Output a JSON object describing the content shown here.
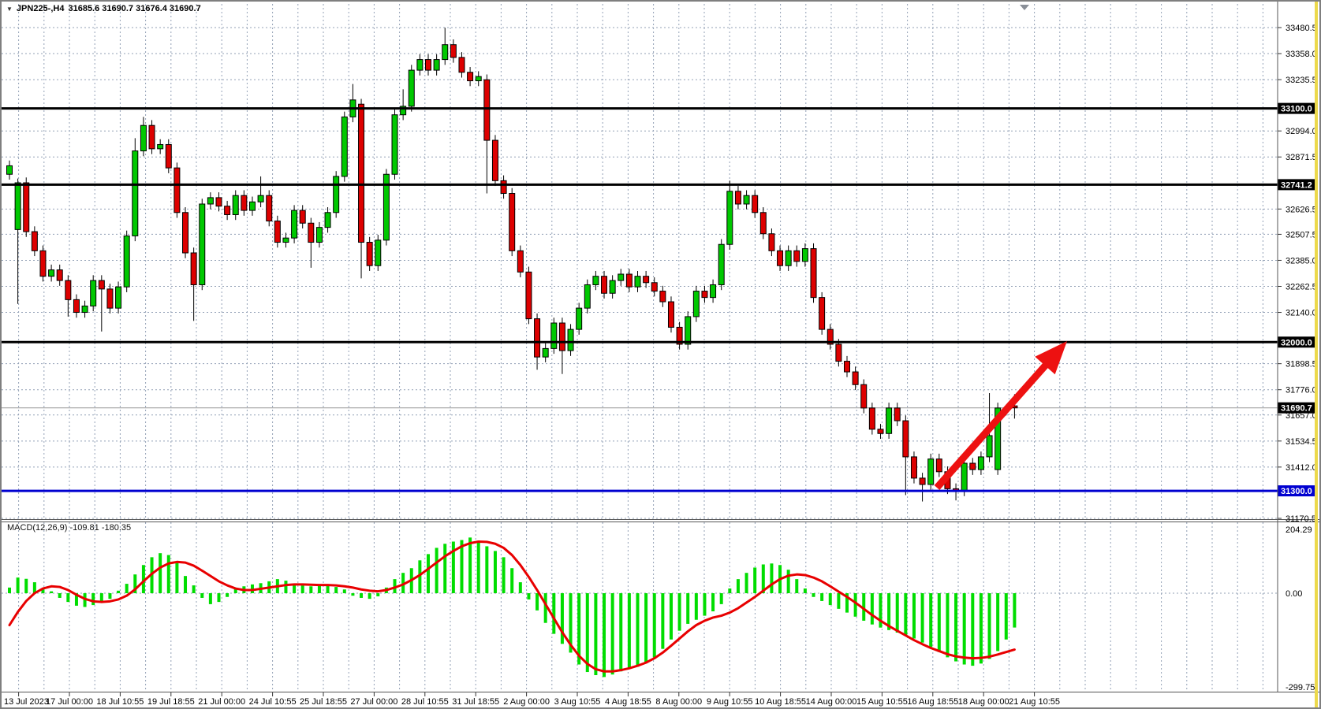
{
  "header": {
    "symbol_period": "JPN225-,H4",
    "ohlc": "31685.6 31690.7 31676.4 31690.7"
  },
  "macd": {
    "label": "MACD(12,26,9) -109.81 -180.35",
    "scale_top": "204.29",
    "scale_zero": "0.00",
    "scale_bottom": "-299.75"
  },
  "colors": {
    "bull_candle": "#00c800",
    "bear_candle": "#dd0000",
    "wick": "#000000",
    "grid": "#93a1b6",
    "level_black": "#000000",
    "level_blue": "#0000d0",
    "current_price_line": "#999999",
    "macd_histogram": "#00dd00",
    "macd_signal": "#e80000",
    "arrow": "#ed1111",
    "tag_black_bg": "#000000",
    "tag_blue_bg": "#0000d0",
    "tag_text": "#ffffff"
  },
  "price_axis": {
    "labels": [
      {
        "text": "33480.5",
        "price": 33480.5,
        "style": "plain"
      },
      {
        "text": "33358.0",
        "price": 33358.0,
        "style": "plain"
      },
      {
        "text": "33235.5",
        "price": 33235.5,
        "style": "plain"
      },
      {
        "text": "33100.0",
        "price": 33100.0,
        "style": "black-tag"
      },
      {
        "text": "32994.0",
        "price": 32994.0,
        "style": "plain"
      },
      {
        "text": "32871.5",
        "price": 32871.5,
        "style": "plain"
      },
      {
        "text": "32741.2",
        "price": 32741.2,
        "style": "black-tag"
      },
      {
        "text": "32626.5",
        "price": 32626.5,
        "style": "plain"
      },
      {
        "text": "32507.5",
        "price": 32507.5,
        "style": "plain"
      },
      {
        "text": "32385.0",
        "price": 32385.0,
        "style": "plain"
      },
      {
        "text": "32262.5",
        "price": 32262.5,
        "style": "plain"
      },
      {
        "text": "32140.0",
        "price": 32140.0,
        "style": "plain"
      },
      {
        "text": "32000.0",
        "price": 32000.0,
        "style": "black-tag"
      },
      {
        "text": "31898.5",
        "price": 31898.5,
        "style": "plain"
      },
      {
        "text": "31776.0",
        "price": 31776.0,
        "style": "plain"
      },
      {
        "text": "31690.7",
        "price": 31690.7,
        "style": "black-tag"
      },
      {
        "text": "31657.0",
        "price": 31657.0,
        "style": "plain"
      },
      {
        "text": "31534.5",
        "price": 31534.5,
        "style": "plain"
      },
      {
        "text": "31412.0",
        "price": 31412.0,
        "style": "plain"
      },
      {
        "text": "31300.0",
        "price": 31300.0,
        "style": "blue-tag"
      },
      {
        "text": "31170.5",
        "price": 31170.5,
        "style": "plain"
      }
    ]
  },
  "time_axis": {
    "labels": [
      "13 Jul 2023",
      "17 Jul 00:00",
      "18 Jul 10:55",
      "19 Jul 18:55",
      "21 Jul 00:00",
      "24 Jul 10:55",
      "25 Jul 18:55",
      "27 Jul 00:00",
      "28 Jul 10:55",
      "31 Jul 18:55",
      "2 Aug 00:00",
      "3 Aug 10:55",
      "4 Aug 18:55",
      "8 Aug 00:00",
      "9 Aug 10:55",
      "10 Aug 18:55",
      "14 Aug 00:00",
      "15 Aug 10:55",
      "16 Aug 18:55",
      "18 Aug 00:00",
      "21 Aug 10:55"
    ]
  },
  "chart_data": {
    "type": "candlestick",
    "symbol": "JPN225-",
    "timeframe": "H4",
    "title": "JPN225-,H4 31685.6 31690.7 31676.4 31690.7",
    "visible_price_range": [
      31170.5,
      33592.0
    ],
    "horizontal_levels": {
      "black_levels": [
        33100.0,
        32741.2,
        32000.0
      ],
      "blue_support": 31300.0,
      "current_price": 31690.7
    },
    "annotation_arrow": {
      "from_price_x": 110.7,
      "from_price": 31530,
      "to_price_x": 126.2,
      "to_price": 32004,
      "meaning": "projected move up to 32000 level"
    },
    "ohlc": {
      "open": [
        32790,
        32530,
        32750,
        32520,
        32430,
        32310,
        32340,
        32290,
        32200,
        32140,
        32170,
        32290,
        32250,
        32160,
        32260,
        32500,
        32900,
        33020,
        32910,
        32930,
        32820,
        32610,
        32420,
        32270,
        32650,
        32680,
        32640,
        32600,
        32690,
        32620,
        32660,
        32690,
        32570,
        32470,
        32490,
        32620,
        32560,
        32470,
        32540,
        32610,
        32780,
        33060,
        33120,
        32470,
        32360,
        32480,
        32790,
        33070,
        33110,
        33280,
        33330,
        33280,
        33330,
        33400,
        33340,
        33270,
        33230,
        33235,
        32950,
        32760,
        32700,
        32430,
        32330,
        32110,
        31930,
        31970,
        32090,
        31960,
        32060,
        32160,
        32270,
        32310,
        32230,
        32290,
        32320,
        32260,
        32310,
        32280,
        32240,
        32190,
        32070,
        31990,
        32120,
        32240,
        32210,
        32270,
        32460,
        32710,
        32650,
        32690,
        32610,
        32510,
        32430,
        32360,
        32430,
        32380,
        32440,
        32210,
        32060,
        31990,
        31910,
        31860,
        31800,
        31690,
        31590,
        31570,
        31690,
        31630,
        31460,
        31360,
        31330,
        31450,
        31390,
        31310,
        31300,
        31430,
        31400,
        31460,
        31400,
        31690,
        31700
      ],
      "high": [
        32855,
        32770,
        32775,
        32545,
        32455,
        32365,
        32365,
        32315,
        32225,
        32195,
        32315,
        32315,
        32275,
        32285,
        32525,
        32960,
        33060,
        33045,
        32955,
        32955,
        32845,
        32635,
        32445,
        32675,
        32705,
        32705,
        32665,
        32715,
        32715,
        32685,
        32780,
        32715,
        32595,
        32515,
        32645,
        32645,
        32585,
        32565,
        32635,
        32805,
        33085,
        33215,
        33145,
        32495,
        32505,
        32815,
        33095,
        33190,
        33305,
        33355,
        33355,
        33355,
        33480,
        33425,
        33365,
        33295,
        33275,
        33260,
        32975,
        32785,
        32725,
        32455,
        32355,
        32135,
        31995,
        32115,
        32115,
        32085,
        32185,
        32295,
        32335,
        32335,
        32315,
        32345,
        32345,
        32335,
        32335,
        32305,
        32265,
        32215,
        32095,
        32145,
        32265,
        32265,
        32295,
        32485,
        32760,
        32735,
        32715,
        32715,
        32635,
        32535,
        32455,
        32455,
        32455,
        32465,
        32465,
        32235,
        32085,
        32015,
        31935,
        31885,
        31825,
        31715,
        31615,
        31715,
        31715,
        31655,
        31485,
        31385,
        31475,
        31475,
        31415,
        31335,
        31455,
        31455,
        31485,
        31760,
        31715,
        31705,
        31755
      ],
      "low": [
        32765,
        32180,
        32495,
        32405,
        32285,
        32285,
        32265,
        32120,
        32115,
        32115,
        32145,
        32050,
        32135,
        32135,
        32235,
        32475,
        32875,
        32885,
        32885,
        32795,
        32585,
        32395,
        32100,
        32245,
        32625,
        32615,
        32575,
        32575,
        32595,
        32595,
        32635,
        32545,
        32445,
        32445,
        32465,
        32535,
        32350,
        32445,
        32515,
        32585,
        32755,
        33035,
        32300,
        32335,
        32335,
        32455,
        32765,
        33045,
        33085,
        33255,
        33255,
        33255,
        33305,
        33315,
        33245,
        33205,
        33205,
        32700,
        32735,
        32675,
        32405,
        32305,
        32085,
        31870,
        31905,
        31945,
        31850,
        31935,
        32035,
        32135,
        32245,
        32205,
        32205,
        32265,
        32235,
        32235,
        32255,
        32215,
        32165,
        32045,
        31965,
        31965,
        32095,
        32185,
        32185,
        32245,
        32435,
        32625,
        32625,
        32585,
        32485,
        32405,
        32335,
        32335,
        32355,
        32355,
        32185,
        32035,
        31965,
        31885,
        31835,
        31775,
        31665,
        31565,
        31545,
        31545,
        31605,
        31280,
        31335,
        31250,
        31305,
        31365,
        31285,
        31255,
        31275,
        31375,
        31375,
        31435,
        31375,
        31655,
        31640
      ],
      "close": [
        32830,
        32750,
        32520,
        32430,
        32310,
        32340,
        32290,
        32200,
        32140,
        32170,
        32290,
        32250,
        32160,
        32260,
        32500,
        32900,
        33020,
        32910,
        32930,
        32820,
        32610,
        32420,
        32270,
        32650,
        32680,
        32640,
        32600,
        32690,
        32620,
        32660,
        32690,
        32570,
        32470,
        32490,
        32620,
        32560,
        32470,
        32540,
        32610,
        32780,
        33060,
        33140,
        32470,
        32360,
        32480,
        32790,
        33070,
        33110,
        33280,
        33330,
        33280,
        33330,
        33400,
        33340,
        33270,
        33230,
        33250,
        32950,
        32760,
        32700,
        32430,
        32330,
        32110,
        31930,
        31970,
        32090,
        31960,
        32060,
        32160,
        32270,
        32310,
        32230,
        32290,
        32320,
        32260,
        32310,
        32280,
        32240,
        32190,
        32070,
        31990,
        32120,
        32240,
        32210,
        32270,
        32460,
        32710,
        32650,
        32690,
        32610,
        32510,
        32430,
        32360,
        32430,
        32380,
        32440,
        32210,
        32060,
        31990,
        31910,
        31860,
        31800,
        31690,
        31590,
        31570,
        31690,
        31630,
        31460,
        31360,
        31330,
        31450,
        31390,
        31310,
        31300,
        31430,
        31400,
        31460,
        31560,
        31690,
        31680,
        31690.7
      ]
    },
    "indicator": {
      "type": "macd",
      "params": [
        12,
        26,
        9
      ],
      "last_values": {
        "macd": -109.81,
        "signal": -180.35
      },
      "scale": [
        204.29,
        0.0,
        -299.75
      ],
      "histogram": [
        18,
        50,
        46,
        35,
        12,
        6,
        -15,
        -28,
        -40,
        -44,
        -38,
        -30,
        -18,
        8,
        30,
        60,
        90,
        115,
        128,
        122,
        100,
        55,
        25,
        -15,
        -35,
        -28,
        -12,
        15,
        22,
        28,
        32,
        38,
        45,
        40,
        30,
        25,
        22,
        25,
        28,
        20,
        12,
        -8,
        -15,
        -18,
        -10,
        18,
        45,
        65,
        80,
        105,
        125,
        145,
        158,
        165,
        170,
        178,
        165,
        150,
        135,
        115,
        80,
        35,
        -20,
        -55,
        -95,
        -130,
        -162,
        -190,
        -228,
        -252,
        -262,
        -268,
        -260,
        -250,
        -242,
        -235,
        -222,
        -205,
        -178,
        -148,
        -120,
        -98,
        -85,
        -72,
        -58,
        -35,
        15,
        45,
        65,
        82,
        92,
        95,
        90,
        75,
        45,
        15,
        -12,
        -25,
        -38,
        -50,
        -62,
        -75,
        -88,
        -100,
        -110,
        -118,
        -126,
        -135,
        -145,
        -158,
        -172,
        -188,
        -205,
        -218,
        -228,
        -232,
        -225,
        -210,
        -185,
        -148,
        -109.81
      ],
      "signal": [
        -102,
        -60,
        -25,
        0,
        15,
        22,
        20,
        10,
        -5,
        -18,
        -26,
        -28,
        -26,
        -20,
        -8,
        12,
        38,
        62,
        82,
        95,
        100,
        98,
        88,
        72,
        55,
        38,
        25,
        15,
        10,
        10,
        14,
        18,
        22,
        26,
        28,
        28,
        27,
        26,
        26,
        25,
        22,
        18,
        12,
        8,
        6,
        10,
        18,
        28,
        42,
        58,
        78,
        98,
        118,
        135,
        150,
        160,
        165,
        164,
        158,
        145,
        122,
        90,
        52,
        10,
        -35,
        -80,
        -125,
        -165,
        -200,
        -226,
        -243,
        -250,
        -250,
        -246,
        -240,
        -232,
        -222,
        -208,
        -190,
        -168,
        -145,
        -122,
        -102,
        -88,
        -78,
        -72,
        -62,
        -48,
        -30,
        -12,
        8,
        28,
        45,
        56,
        60,
        58,
        50,
        38,
        22,
        5,
        -12,
        -30,
        -50,
        -70,
        -88,
        -105,
        -120,
        -135,
        -150,
        -163,
        -175,
        -185,
        -195,
        -202,
        -206,
        -208,
        -207,
        -203,
        -196,
        -188,
        -180.35
      ]
    }
  }
}
